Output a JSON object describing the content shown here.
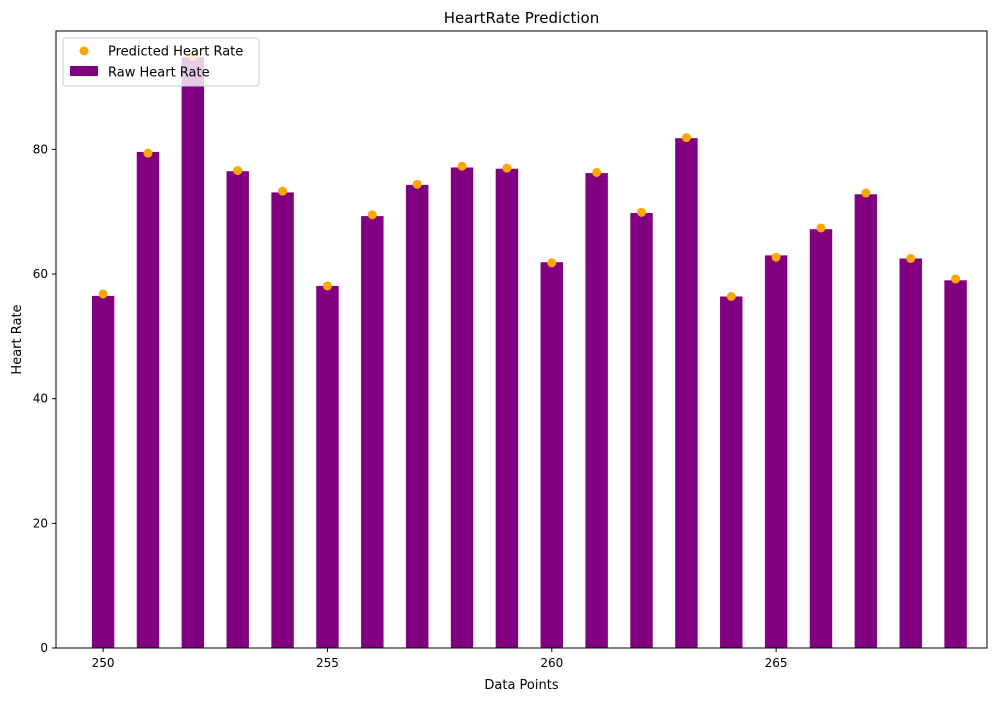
{
  "chart_data": {
    "type": "bar",
    "title": "HeartRate Prediction",
    "xlabel": "Data Points",
    "ylabel": "Heart Rate",
    "x": [
      250,
      251,
      252,
      253,
      254,
      255,
      256,
      257,
      258,
      259,
      260,
      261,
      262,
      263,
      264,
      265,
      266,
      267,
      268,
      269
    ],
    "xlim": [
      248.95,
      269.7
    ],
    "ylim": [
      0,
      99
    ],
    "xticks": [
      "250",
      "255",
      "260",
      "265"
    ],
    "yticks": [
      "0",
      "20",
      "40",
      "60",
      "80"
    ],
    "grid": false,
    "legend_position": "top-left",
    "series": [
      {
        "name": "Raw Heart Rate",
        "kind": "bar",
        "color": "#800080",
        "values": [
          56.5,
          79.6,
          94.8,
          76.5,
          73.1,
          58.1,
          69.3,
          74.3,
          77.1,
          76.9,
          61.9,
          76.2,
          69.8,
          81.8,
          56.4,
          63.0,
          67.2,
          72.8,
          62.5,
          59.0
        ]
      },
      {
        "name": "Predicted Heart Rate",
        "kind": "scatter",
        "color": "#FFA500",
        "values": [
          56.8,
          79.4,
          94.9,
          76.6,
          73.3,
          58.1,
          69.5,
          74.4,
          77.3,
          77.0,
          61.8,
          76.3,
          69.9,
          81.9,
          56.4,
          62.7,
          67.4,
          73.0,
          62.5,
          59.2
        ]
      }
    ]
  }
}
